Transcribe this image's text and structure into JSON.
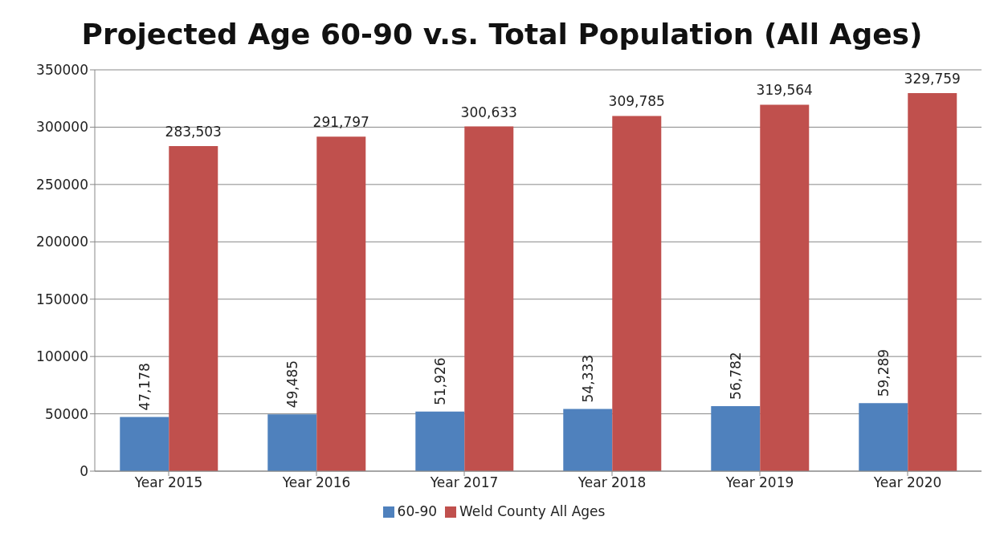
{
  "chart_data": {
    "type": "bar",
    "title": "Projected Age 60-90 v.s. Total Population (All Ages)",
    "categories": [
      "Year 2015",
      "Year 2016",
      "Year 2017",
      "Year 2018",
      "Year 2019",
      "Year 2020"
    ],
    "series": [
      {
        "name": "60-90",
        "color": "#4f81bd",
        "values": [
          47178,
          49485,
          51926,
          54333,
          56782,
          59289
        ],
        "value_labels": [
          "47,178",
          "49,485",
          "51,926",
          "54,333",
          "56,782",
          "59,289"
        ]
      },
      {
        "name": "Weld County All Ages",
        "color": "#c0504d",
        "values": [
          283503,
          291797,
          300633,
          309785,
          319564,
          329759
        ],
        "value_labels": [
          "283,503",
          "291,797",
          "300,633",
          "309,785",
          "319,564",
          "329,759"
        ]
      }
    ],
    "ylim": [
      0,
      350000
    ],
    "yticks": [
      0,
      50000,
      100000,
      150000,
      200000,
      250000,
      300000,
      350000
    ],
    "grid": "y",
    "legend": "bottom"
  }
}
